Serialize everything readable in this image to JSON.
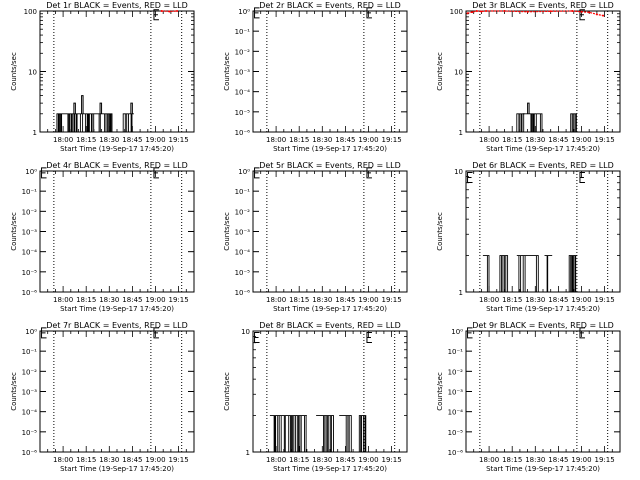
{
  "chart_data": [
    {
      "type": "line",
      "title": "Det 1r BLACK = Events, RED = LLD",
      "xlabel": "Start Time (19-Sep-17 17:45:20)",
      "ylabel": "Counts/sec",
      "yscale": "log",
      "x_ticks": [
        "18:00",
        "18:15",
        "18:30",
        "18:45",
        "19:00",
        "19:15"
      ],
      "y_ticks": [
        "1",
        "10",
        "100"
      ],
      "ylim": [
        1,
        100
      ],
      "dotted_vlines": [
        "17:54",
        "18:57",
        "19:17"
      ],
      "e_markers": [
        {
          "time": "18:59",
          "y": 90
        }
      ],
      "events_series": {
        "name": "Events",
        "color": "#000000",
        "bursts": [
          [
            "17:56",
            "18:32",
            2
          ],
          [
            "18:39",
            "18:46",
            2
          ]
        ],
        "peaks": [
          [
            "18:12",
            4
          ],
          [
            "18:07",
            3
          ],
          [
            "18:24",
            3
          ],
          [
            "18:44",
            3
          ]
        ]
      },
      "lld_series": {
        "name": "LLD",
        "color": "#ff0000",
        "x": [
          "19:04",
          "19:09",
          "19:14"
        ],
        "y": [
          100,
          98,
          100
        ]
      }
    },
    {
      "type": "line",
      "title": "Det 2r BLACK = Events, RED = LLD",
      "xlabel": "Start Time (19-Sep-17 17:45:20)",
      "ylabel": "Counts/sec",
      "yscale": "log",
      "x_ticks": [
        "18:00",
        "18:15",
        "18:30",
        "18:45",
        "19:00",
        "19:15"
      ],
      "y_ticks": [
        "10⁰",
        "10⁻¹",
        "10⁻²",
        "10⁻³",
        "10⁻⁴",
        "10⁻⁵",
        "10⁻⁶"
      ],
      "ylim": [
        1e-06,
        1
      ],
      "dotted_vlines": [
        "17:54",
        "18:57",
        "19:17"
      ],
      "e_markers": [
        {
          "time": "17:46",
          "y": 0.9
        },
        {
          "time": "18:59",
          "y": 0.9
        }
      ],
      "events_series": null,
      "lld_series": null
    },
    {
      "type": "line",
      "title": "Det 3r BLACK = Events, RED = LLD",
      "xlabel": "Start Time (19-Sep-17 17:45:20)",
      "ylabel": "Counts/sec",
      "yscale": "log",
      "x_ticks": [
        "18:00",
        "18:15",
        "18:30",
        "18:45",
        "19:00",
        "19:15"
      ],
      "y_ticks": [
        "1",
        "10",
        "100"
      ],
      "ylim": [
        1,
        100
      ],
      "dotted_vlines": [
        "17:54",
        "18:57",
        "19:17"
      ],
      "e_markers": [
        {
          "time": "18:59",
          "y": 90
        }
      ],
      "events_series": {
        "name": "Events",
        "color": "#000000",
        "bursts": [
          [
            "18:18",
            "18:34",
            2
          ],
          [
            "18:53",
            "18:57",
            2
          ]
        ],
        "peaks": [
          [
            "18:25",
            3
          ],
          [
            "18:22",
            2
          ]
        ]
      },
      "lld_series": {
        "name": "LLD",
        "color": "#ff0000",
        "x": [
          "17:46",
          "17:49",
          "17:52",
          "17:55",
          "17:58",
          "18:10",
          "18:25",
          "18:40",
          "18:54",
          "19:00",
          "19:05",
          "19:10",
          "19:14"
        ],
        "y": [
          92,
          96,
          100,
          98,
          100,
          100,
          97,
          99,
          100,
          97,
          95,
          88,
          84
        ]
      }
    },
    {
      "type": "line",
      "title": "Det 4r BLACK = Events, RED = LLD",
      "xlabel": "Start Time (19-Sep-17 17:45:20)",
      "ylabel": "Counts/sec",
      "yscale": "log",
      "x_ticks": [
        "18:00",
        "18:15",
        "18:30",
        "18:45",
        "19:00",
        "19:15"
      ],
      "y_ticks": [
        "10⁰",
        "10⁻¹",
        "10⁻²",
        "10⁻³",
        "10⁻⁴",
        "10⁻⁵",
        "10⁻⁶"
      ],
      "ylim": [
        1e-06,
        1
      ],
      "dotted_vlines": [
        "17:54",
        "18:57",
        "19:17"
      ],
      "e_markers": [
        {
          "time": "17:46",
          "y": 0.9
        },
        {
          "time": "18:59",
          "y": 0.9
        }
      ],
      "events_series": null,
      "lld_series": null
    },
    {
      "type": "line",
      "title": "Det 5r BLACK = Events, RED = LLD",
      "xlabel": "Start Time (19-Sep-17 17:45:20)",
      "ylabel": "Counts/sec",
      "yscale": "log",
      "x_ticks": [
        "18:00",
        "18:15",
        "18:30",
        "18:45",
        "19:00",
        "19:15"
      ],
      "y_ticks": [
        "10⁰",
        "10⁻¹",
        "10⁻²",
        "10⁻³",
        "10⁻⁴",
        "10⁻⁵",
        "10⁻⁶"
      ],
      "ylim": [
        1e-06,
        1
      ],
      "dotted_vlines": [
        "17:54",
        "18:57",
        "19:17"
      ],
      "e_markers": [
        {
          "time": "17:46",
          "y": 0.9
        },
        {
          "time": "18:59",
          "y": 0.9
        }
      ],
      "events_series": null,
      "lld_series": null
    },
    {
      "type": "line",
      "title": "Det 6r BLACK = Events, RED = LLD",
      "xlabel": "Start Time (19-Sep-17 17:45:20)",
      "ylabel": "Counts/sec",
      "yscale": "log",
      "x_ticks": [
        "18:00",
        "18:15",
        "18:30",
        "18:45",
        "19:00",
        "19:15"
      ],
      "y_ticks": [
        "1",
        "10"
      ],
      "ylim": [
        1,
        10
      ],
      "dotted_vlines": [
        "17:54",
        "18:57",
        "19:17"
      ],
      "e_markers": [
        {
          "time": "17:46",
          "y": 9
        },
        {
          "time": "18:59",
          "y": 9
        }
      ],
      "events_series": {
        "name": "Events",
        "color": "#000000",
        "bursts": [
          [
            "17:56",
            "17:59",
            2
          ],
          [
            "18:07",
            "18:12",
            2
          ],
          [
            "18:18",
            "18:31",
            2
          ],
          [
            "18:36",
            "18:41",
            2
          ],
          [
            "18:52",
            "18:57",
            2
          ]
        ],
        "peaks": []
      },
      "lld_series": null
    },
    {
      "type": "line",
      "title": "Det 7r BLACK = Events, RED = LLD",
      "xlabel": "Start Time (19-Sep-17 17:45:20)",
      "ylabel": "Counts/sec",
      "yscale": "log",
      "x_ticks": [
        "18:00",
        "18:15",
        "18:30",
        "18:45",
        "19:00",
        "19:15"
      ],
      "y_ticks": [
        "10⁰",
        "10⁻¹",
        "10⁻²",
        "10⁻³",
        "10⁻⁴",
        "10⁻⁵",
        "10⁻⁶"
      ],
      "ylim": [
        1e-06,
        1
      ],
      "dotted_vlines": [
        "17:54",
        "18:57",
        "19:17"
      ],
      "e_markers": [
        {
          "time": "17:46",
          "y": 0.9
        },
        {
          "time": "18:59",
          "y": 0.9
        }
      ],
      "events_series": null,
      "lld_series": null
    },
    {
      "type": "line",
      "title": "Det 8r BLACK = Events, RED = LLD",
      "xlabel": "Start Time (19-Sep-17 17:45:20)",
      "ylabel": "Counts/sec",
      "yscale": "log",
      "x_ticks": [
        "18:00",
        "18:15",
        "18:30",
        "18:45",
        "19:00",
        "19:15"
      ],
      "y_ticks": [
        "1",
        "10"
      ],
      "ylim": [
        1,
        10
      ],
      "dotted_vlines": [
        "17:54",
        "18:57",
        "19:17"
      ],
      "e_markers": [
        {
          "time": "17:46",
          "y": 9
        },
        {
          "time": "18:59",
          "y": 9
        }
      ],
      "events_series": {
        "name": "Events",
        "color": "#000000",
        "bursts": [
          [
            "17:56",
            "18:20",
            2
          ],
          [
            "18:26",
            "18:36",
            2
          ],
          [
            "18:41",
            "18:48",
            2
          ],
          [
            "18:54",
            "18:58",
            2
          ]
        ],
        "peaks": []
      },
      "lld_series": null
    },
    {
      "type": "line",
      "title": "Det 9r BLACK = Events, RED = LLD",
      "xlabel": "Start Time (19-Sep-17 17:45:20)",
      "ylabel": "Counts/sec",
      "yscale": "log",
      "x_ticks": [
        "18:00",
        "18:15",
        "18:30",
        "18:45",
        "19:00",
        "19:15"
      ],
      "y_ticks": [
        "10⁰",
        "10⁻¹",
        "10⁻²",
        "10⁻³",
        "10⁻⁴",
        "10⁻⁵",
        "10⁻⁶"
      ],
      "ylim": [
        1e-06,
        1
      ],
      "dotted_vlines": [
        "17:54",
        "18:57",
        "19:17"
      ],
      "e_markers": [
        {
          "time": "17:46",
          "y": 0.9
        },
        {
          "time": "18:59",
          "y": 0.9
        }
      ],
      "events_series": null,
      "lld_series": null
    }
  ]
}
